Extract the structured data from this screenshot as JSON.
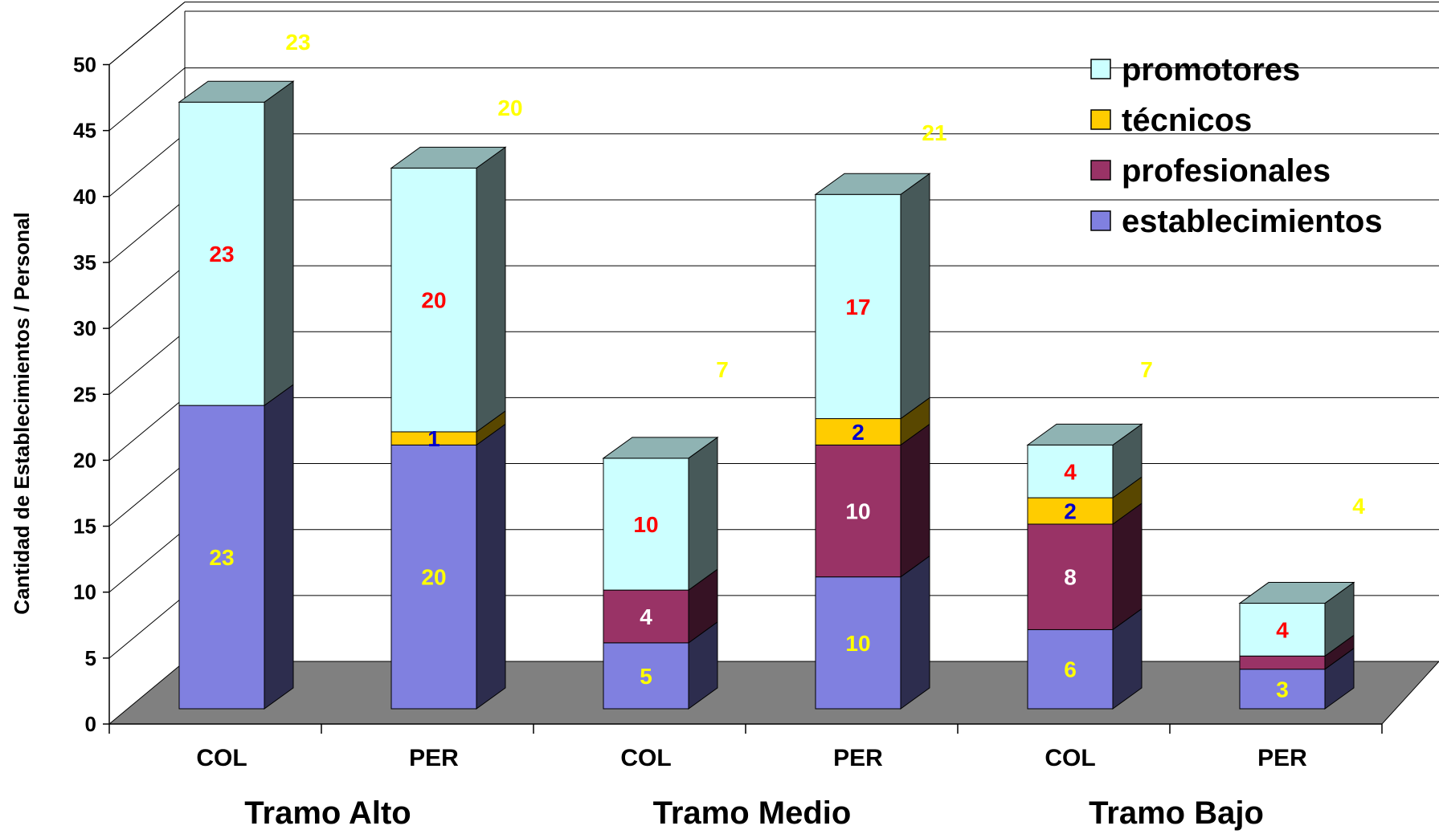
{
  "chart_data": {
    "type": "bar",
    "stacked": true,
    "three_d": true,
    "ylabel": "Cantidad de Establecimientos / Personal",
    "ylim": [
      0,
      50
    ],
    "yticks": [
      0,
      5,
      10,
      15,
      20,
      25,
      30,
      35,
      40,
      45,
      50
    ],
    "grid": true,
    "legend_position": "top-right",
    "categories": [
      "COL",
      "PER",
      "COL",
      "PER",
      "COL",
      "PER"
    ],
    "groups": [
      {
        "label": "Tramo Alto",
        "categories": [
          0,
          1
        ]
      },
      {
        "label": "Tramo Medio",
        "categories": [
          2,
          3
        ]
      },
      {
        "label": "Tramo Bajo",
        "categories": [
          4,
          5
        ]
      }
    ],
    "series": [
      {
        "name": "establecimientos",
        "values": [
          23,
          20,
          5,
          10,
          6,
          3
        ],
        "labels": [
          "23",
          "20",
          "5",
          "10",
          "6",
          "3"
        ],
        "color": "#8080e0",
        "label_color": "#ffff00"
      },
      {
        "name": "profesionales",
        "values": [
          0,
          0,
          4,
          10,
          8,
          1
        ],
        "labels": [
          "",
          "",
          "4",
          "10",
          "8",
          ""
        ],
        "color": "#993366",
        "label_color": "#ffffff"
      },
      {
        "name": "técnicos",
        "values": [
          0,
          1,
          0,
          2,
          2,
          0
        ],
        "labels": [
          "",
          "1",
          "",
          "2",
          "2",
          ""
        ],
        "color": "#ffcc00",
        "label_color": "#0000cc"
      },
      {
        "name": "promotores",
        "values": [
          23,
          20,
          10,
          17,
          4,
          4
        ],
        "labels": [
          "23",
          "20",
          "10",
          "17",
          "4",
          "4"
        ],
        "color": "#ccffff",
        "label_color": "#ff0000"
      }
    ],
    "top_labels": {
      "values": [
        "23",
        "20",
        "7",
        "21",
        "7",
        "4"
      ],
      "color": "#ffff00"
    }
  }
}
